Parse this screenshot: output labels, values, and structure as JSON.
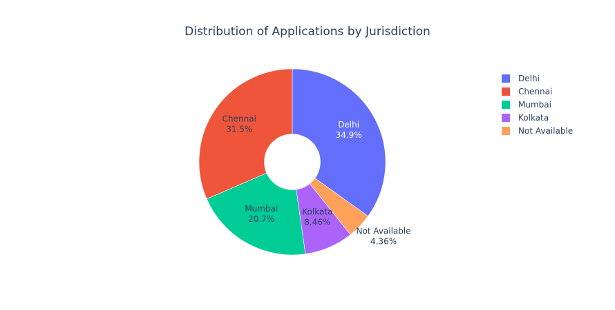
{
  "chart_data": {
    "type": "pie",
    "hole": 0.3,
    "title": "Distribution of Applications by Jurisdiction",
    "slices": [
      {
        "label": "Delhi",
        "percent": 34.9,
        "percent_text": "34.9%",
        "color": "#636efa",
        "label_color": "#ffffff",
        "label_position": "inside"
      },
      {
        "label": "Not Available",
        "percent": 4.36,
        "percent_text": "4.36%",
        "color": "#ffa15a",
        "label_color": "#2a3f5f",
        "label_position": "outside"
      },
      {
        "label": "Kolkata",
        "percent": 8.46,
        "percent_text": "8.46%",
        "color": "#ab63fa",
        "label_color": "#2a3f5f",
        "label_position": "inside"
      },
      {
        "label": "Mumbai",
        "percent": 20.7,
        "percent_text": "20.7%",
        "color": "#00cc96",
        "label_color": "#2a3f5f",
        "label_position": "inside"
      },
      {
        "label": "Chennai",
        "percent": 31.5,
        "percent_text": "31.5%",
        "color": "#ef553b",
        "label_color": "#2a3f5f",
        "label_position": "inside"
      }
    ],
    "legend": {
      "position": "top-right",
      "entries": [
        {
          "label": "Delhi",
          "color": "#636efa"
        },
        {
          "label": "Chennai",
          "color": "#ef553b"
        },
        {
          "label": "Mumbai",
          "color": "#00cc96"
        },
        {
          "label": "Kolkata",
          "color": "#ab63fa"
        },
        {
          "label": "Not Available",
          "color": "#ffa15a"
        }
      ]
    }
  }
}
